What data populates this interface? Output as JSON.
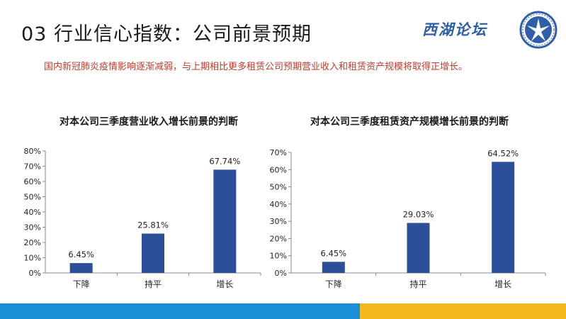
{
  "page": {
    "title": "03 行业信心指数：公司前景预期",
    "logo_text": "西湖论坛",
    "note": "国内新冠肺炎疫情影响逐渐减弱，与上期相比更多租赁公司预期营业收入和租赁资产规模将取得正增长。"
  },
  "colors": {
    "bar": "#2c4f9a",
    "note": "#c0392b",
    "stripe_blue": "#1a8fd6",
    "stripe_yellow": "#f5b81c"
  },
  "chart_data": [
    {
      "type": "bar",
      "title": "对本公司三季度营业收入增长前景的判断",
      "categories": [
        "下降",
        "持平",
        "增长"
      ],
      "values": [
        6.45,
        25.81,
        67.74
      ],
      "value_labels": [
        "6.45%",
        "25.81%",
        "67.74%"
      ],
      "ylim": [
        0,
        80
      ],
      "yticks": [
        "0%",
        "10%",
        "20%",
        "30%",
        "40%",
        "50%",
        "60%",
        "70%",
        "80%"
      ],
      "grid": false,
      "legend": "none"
    },
    {
      "type": "bar",
      "title": "对本公司三季度租赁资产规模增长前景的判断",
      "categories": [
        "下降",
        "持平",
        "增长"
      ],
      "values": [
        6.45,
        29.03,
        64.52
      ],
      "value_labels": [
        "6.45%",
        "29.03%",
        "64.52%"
      ],
      "ylim": [
        0,
        70
      ],
      "yticks": [
        "0%",
        "10%",
        "20%",
        "30%",
        "40%",
        "50%",
        "60%",
        "70%"
      ],
      "grid": false,
      "legend": "none"
    }
  ]
}
